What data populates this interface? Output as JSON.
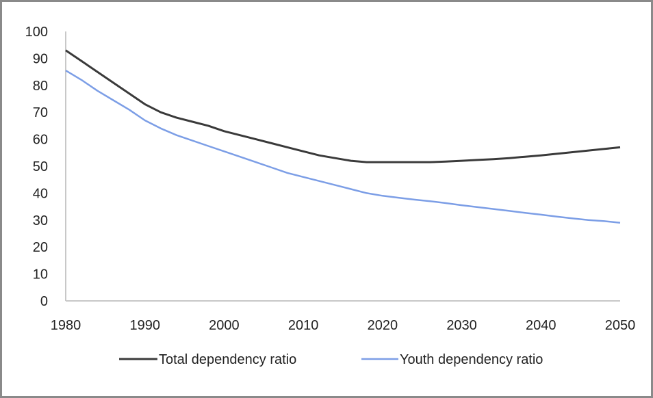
{
  "chart_data": {
    "type": "line",
    "title": "",
    "xlabel": "",
    "ylabel": "",
    "xlim": [
      1980,
      2050
    ],
    "ylim": [
      0,
      100
    ],
    "x_ticks": [
      "1980",
      "1990",
      "2000",
      "2010",
      "2020",
      "2030",
      "2040",
      "2050"
    ],
    "y_ticks": [
      "0",
      "10",
      "20",
      "30",
      "40",
      "50",
      "60",
      "70",
      "80",
      "90",
      "100"
    ],
    "grid": false,
    "legend_position": "bottom",
    "series": [
      {
        "name": "Total dependency ratio",
        "color": "#3a3a3a",
        "x": [
          1980,
          1982,
          1984,
          1986,
          1988,
          1990,
          1992,
          1994,
          1996,
          1998,
          2000,
          2002,
          2004,
          2006,
          2008,
          2010,
          2012,
          2014,
          2016,
          2018,
          2020,
          2022,
          2024,
          2026,
          2028,
          2030,
          2032,
          2034,
          2036,
          2038,
          2040,
          2042,
          2044,
          2046,
          2048,
          2050
        ],
        "values": [
          93,
          89,
          85,
          81,
          77,
          73,
          70,
          68,
          66.5,
          65,
          63,
          61.5,
          60,
          58.5,
          57,
          55.5,
          54,
          53,
          52,
          51.5,
          51.5,
          51.5,
          51.5,
          51.5,
          51.7,
          52,
          52.3,
          52.6,
          53,
          53.5,
          54,
          54.6,
          55.2,
          55.8,
          56.4,
          57
        ]
      },
      {
        "name": "Youth dependency ratio",
        "color": "#7c9ee6",
        "x": [
          1980,
          1982,
          1984,
          1986,
          1988,
          1990,
          1992,
          1994,
          1996,
          1998,
          2000,
          2002,
          2004,
          2006,
          2008,
          2010,
          2012,
          2014,
          2016,
          2018,
          2020,
          2022,
          2024,
          2026,
          2028,
          2030,
          2032,
          2034,
          2036,
          2038,
          2040,
          2042,
          2044,
          2046,
          2048,
          2050
        ],
        "values": [
          85.5,
          82,
          78,
          74.5,
          71,
          67,
          64,
          61.5,
          59.5,
          57.5,
          55.5,
          53.5,
          51.5,
          49.5,
          47.5,
          46,
          44.5,
          43,
          41.5,
          40,
          39,
          38.3,
          37.6,
          37,
          36.3,
          35.5,
          34.8,
          34.1,
          33.4,
          32.7,
          32,
          31.3,
          30.6,
          30,
          29.6,
          29
        ]
      }
    ]
  }
}
